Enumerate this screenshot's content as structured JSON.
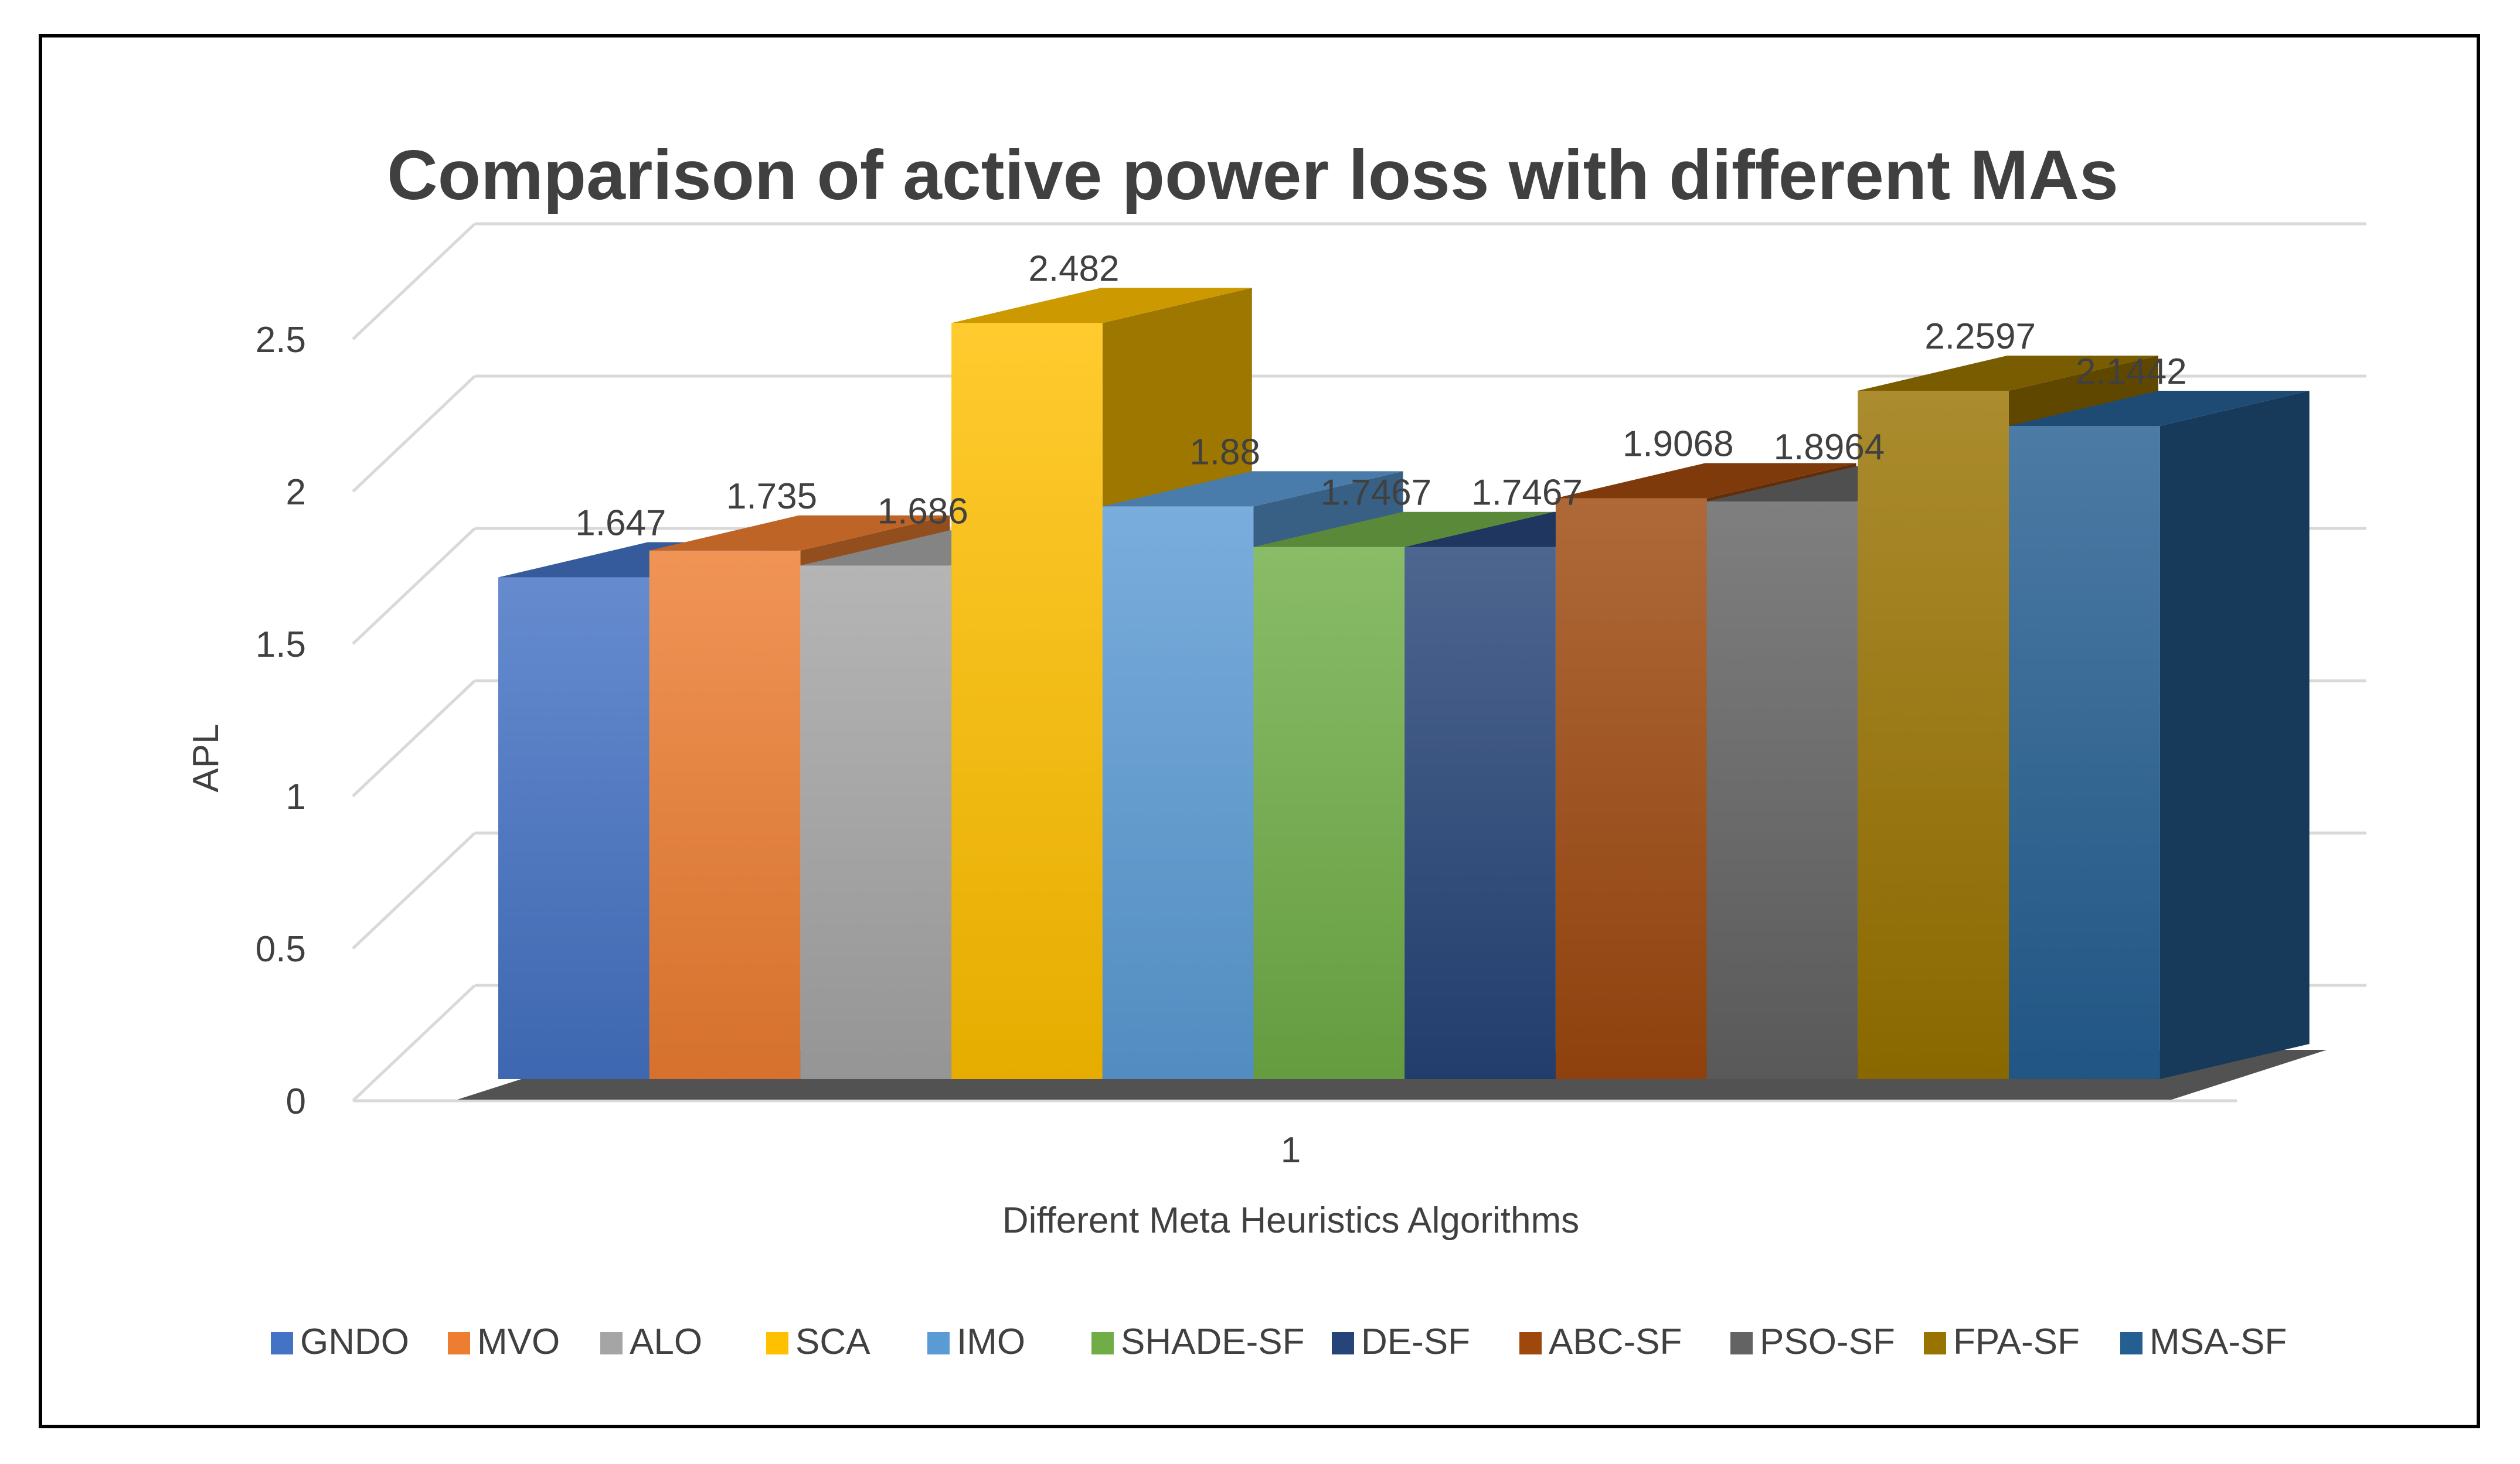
{
  "chart_data": {
    "type": "bar",
    "title": "Comparison of active power loss with different MAs",
    "xlabel": "Different Meta Heuristics Algorithms",
    "ylabel": "APL",
    "categories": [
      "1"
    ],
    "ylim": [
      0,
      2.5
    ],
    "yticks": [
      "0",
      "0.5",
      "1",
      "1.5",
      "2",
      "2.5"
    ],
    "grid": true,
    "legend_position": "bottom",
    "series": [
      {
        "name": "GNDO",
        "values": [
          1.647
        ],
        "label": "1.647",
        "color": "#4472C4"
      },
      {
        "name": "MVO",
        "values": [
          1.735
        ],
        "label": "1.735",
        "color": "#ED7D31"
      },
      {
        "name": "ALO",
        "values": [
          1.686
        ],
        "label": "1.686",
        "color": "#A5A5A5"
      },
      {
        "name": "SCA",
        "values": [
          2.482
        ],
        "label": "2.482",
        "color": "#FFC000"
      },
      {
        "name": "IMO",
        "values": [
          1.88
        ],
        "label": "1.88",
        "color": "#5B9BD5"
      },
      {
        "name": "SHADE-SF",
        "values": [
          1.7467
        ],
        "label": "1.7467",
        "color": "#70AD47"
      },
      {
        "name": "DE-SF",
        "values": [
          1.7467
        ],
        "label": "1.7467",
        "color": "#264478"
      },
      {
        "name": "ABC-SF",
        "values": [
          1.9068
        ],
        "label": "1.9068",
        "color": "#9E480E"
      },
      {
        "name": "PSO-SF",
        "values": [
          1.8964
        ],
        "label": "1.8964",
        "color": "#636363"
      },
      {
        "name": "FPA-SF",
        "values": [
          2.2597
        ],
        "label": "2.2597",
        "color": "#997300"
      },
      {
        "name": "MSA-SF",
        "values": [
          2.1442
        ],
        "label": "2.1442",
        "color": "#255E91"
      }
    ]
  }
}
